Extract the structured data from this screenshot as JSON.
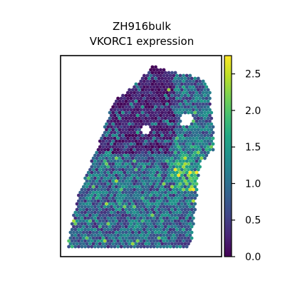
{
  "chart_data": {
    "type": "scatter",
    "title_line1": "ZH916bulk",
    "title_line2": "VKORC1 expression",
    "colormap": "viridis",
    "colorbar": {
      "range": [
        0.0,
        2.75
      ],
      "ticks": [
        0.0,
        0.5,
        1.0,
        1.5,
        2.0,
        2.5
      ],
      "tick_labels": [
        "0.0",
        "0.5",
        "1.0",
        "1.5",
        "2.0",
        "2.5"
      ]
    },
    "axes": {
      "xticks": false,
      "yticks": false,
      "grid": false
    },
    "series": [
      {
        "values_summary": "spatial spots colored by expression, mostly 0.0–1.5 with hotspots ~2.0–2.6 on the right-center region"
      }
    ]
  }
}
